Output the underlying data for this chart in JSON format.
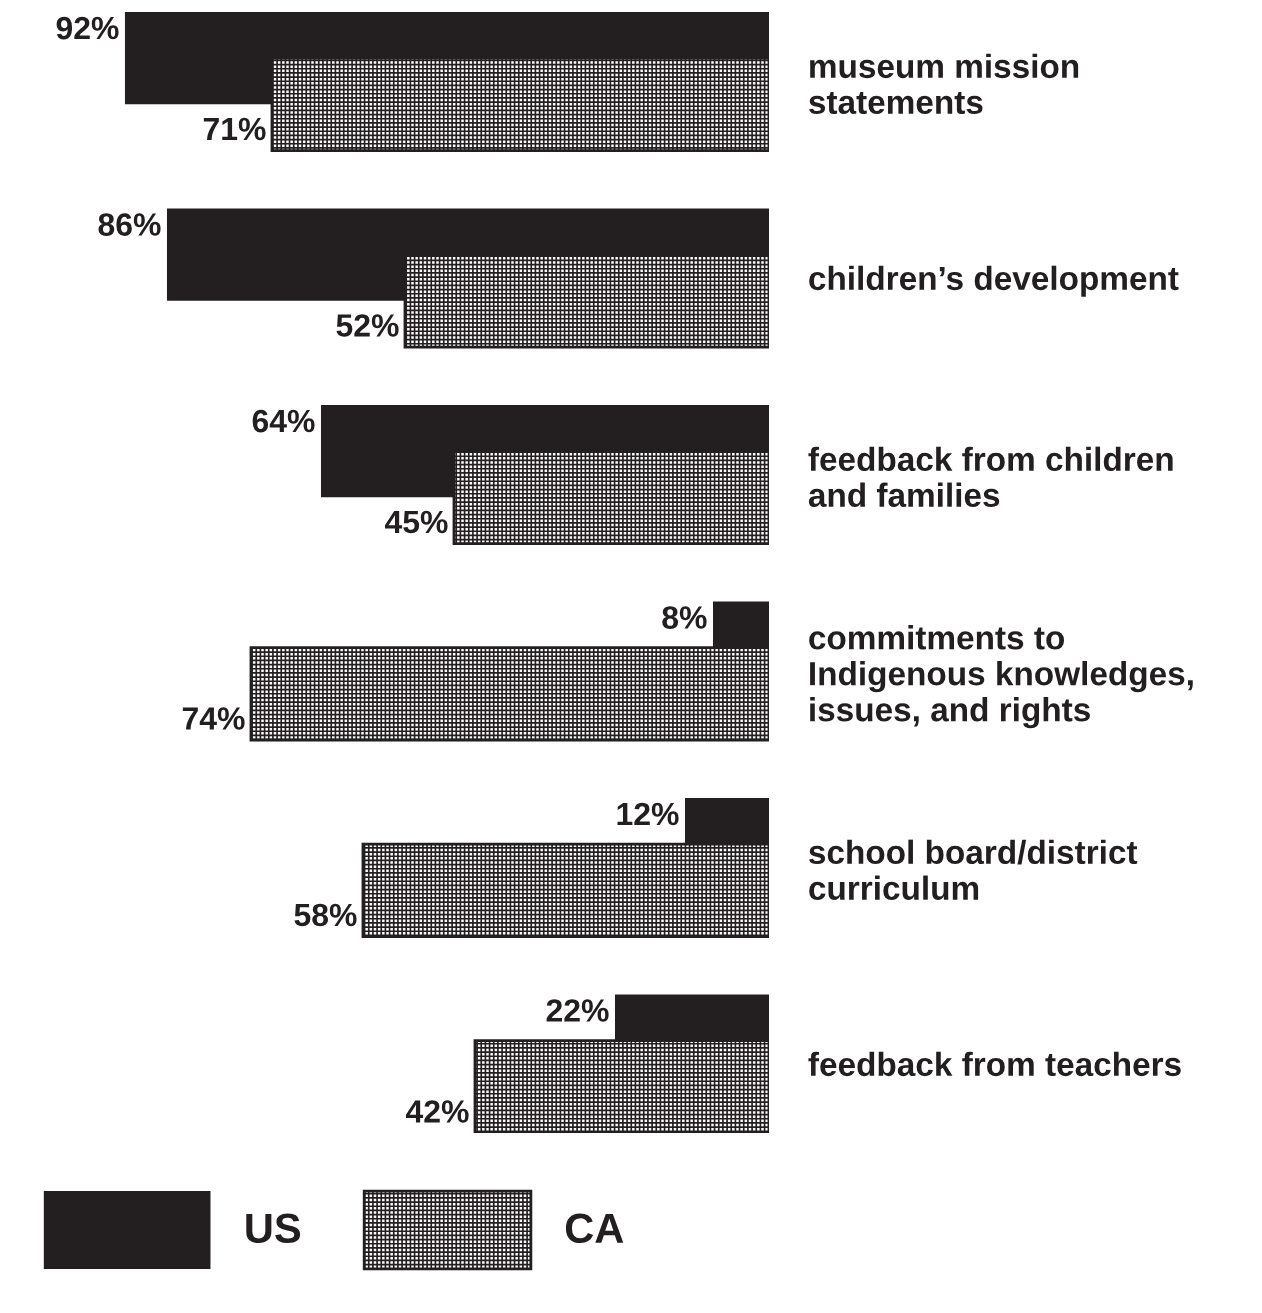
{
  "chart_data": {
    "type": "bar",
    "orientation": "horizontal",
    "categories": [
      "museum mission\nstatements",
      "children’s development",
      "feedback from children\nand families",
      "commitments to\nIndigenous knowledges,\nissues, and rights",
      "school board/district\ncurriculum",
      "feedback from teachers"
    ],
    "series": [
      {
        "name": "US",
        "color": "#231f20",
        "values": [
          92,
          86,
          64,
          8,
          12,
          22
        ],
        "value_labels": [
          "92%",
          "86%",
          "64%",
          "8%",
          "12%",
          "22%"
        ]
      },
      {
        "name": "CA",
        "color": "#231f20",
        "values": [
          71,
          52,
          45,
          74,
          58,
          42
        ],
        "value_labels": [
          "71%",
          "52%",
          "45%",
          "74%",
          "58%",
          "42%"
        ]
      }
    ],
    "tick_labels": "y",
    "grid": false,
    "legend": "bottom left"
  }
}
